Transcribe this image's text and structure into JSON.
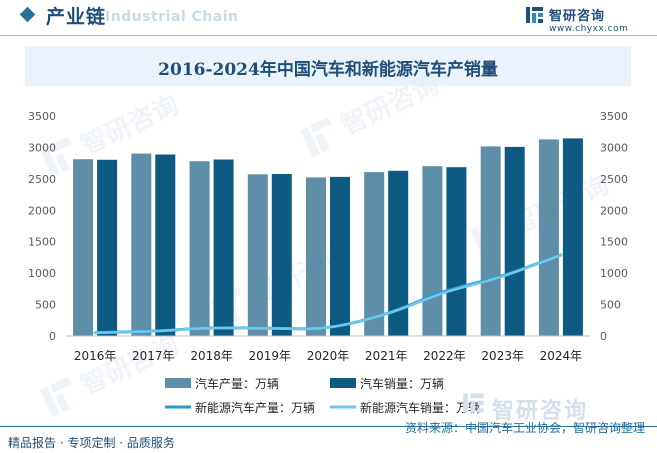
{
  "header": {
    "section_title": "产业链",
    "ghost_text": "Industrial Chain",
    "logo_name": "智研咨询",
    "logo_url": "www.chyxx.com",
    "logo_icon": "chyxx-logo-icon"
  },
  "footer": {
    "left_text": "精品报告 · 专项定制 · 品质服务",
    "source": "资料来源：中国汽车工业协会，智研咨询整理",
    "watermark": "智研咨询"
  },
  "colors": {
    "bar_production": "#5f8fa8",
    "bar_sales": "#0d5a82",
    "line_nev_production": "#2a9ad6",
    "line_nev_sales": "#6cc6ee",
    "title_band": "#eaf3fb",
    "axis_text": "#595959"
  },
  "chart_data": {
    "type": "bar",
    "title": "2016-2024年中国汽车和新能源汽车产销量",
    "categories": [
      "2016年",
      "2017年",
      "2018年",
      "2019年",
      "2020年",
      "2021年",
      "2022年",
      "2023年",
      "2024年"
    ],
    "y_ticks": [
      "0",
      "500",
      "1000",
      "1500",
      "2000",
      "2500",
      "3000",
      "3500"
    ],
    "ylim": [
      0,
      3500
    ],
    "y2lim": [
      0,
      3500
    ],
    "grid": false,
    "legend_position": "bottom",
    "series": [
      {
        "name": "汽车产量：万辆",
        "kind": "bar",
        "axis": "left",
        "values": [
          2812,
          2902,
          2781,
          2572,
          2523,
          2608,
          2702,
          3016,
          3128
        ]
      },
      {
        "name": "汽车销量：万辆",
        "kind": "bar",
        "axis": "left",
        "values": [
          2803,
          2888,
          2808,
          2577,
          2531,
          2628,
          2686,
          3009,
          3144
        ]
      },
      {
        "name": "新能源汽车产量：万辆",
        "kind": "line",
        "axis": "right",
        "values": [
          52,
          79,
          127,
          124,
          137,
          355,
          706,
          959,
          1289
        ]
      },
      {
        "name": "新能源汽车销量：万辆",
        "kind": "line",
        "axis": "right",
        "values": [
          51,
          77,
          126,
          121,
          137,
          352,
          689,
          950,
          1287
        ]
      }
    ]
  }
}
